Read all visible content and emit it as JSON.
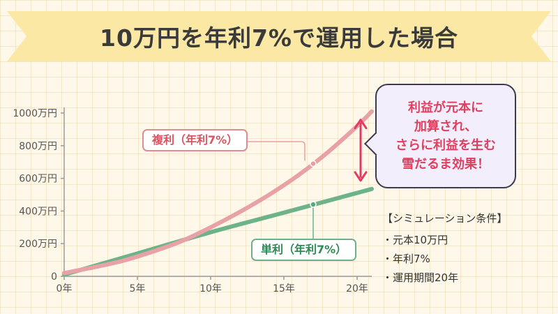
{
  "title": "10万円を年利7%で運用した場合",
  "callout": {
    "lines": [
      "利益が元本に",
      "加算され、",
      "さらに利益を生む",
      "雪だるま効果！"
    ]
  },
  "series_labels": {
    "compound": "複利（年利7%）",
    "simple": "単利（年利7%）"
  },
  "conditions": {
    "title": "【シミュレーション条件】",
    "items": [
      "・元本10万円",
      "・年利7%",
      "・運用期間20年"
    ]
  },
  "colors": {
    "compound": "#e8a1a4",
    "simple": "#6db38a",
    "arrow": "#e23a63",
    "banner": "#fbe8a4",
    "axis": "#9a9a9a"
  },
  "chart_data": {
    "type": "line",
    "x_unit": "年",
    "y_unit": "万円",
    "xlim": [
      0,
      21
    ],
    "ylim": [
      0,
      1000
    ],
    "x_ticks": [
      0,
      5,
      10,
      15,
      20
    ],
    "x_tick_labels": [
      "0年",
      "5年",
      "10年",
      "15年",
      "20年"
    ],
    "y_ticks": [
      0,
      200,
      400,
      600,
      800,
      1000
    ],
    "y_tick_labels": [
      "0",
      "200万円",
      "400万円",
      "600万円",
      "800万円",
      "1000万円"
    ],
    "grid": false,
    "series": [
      {
        "key": "compound",
        "x": [
          0,
          2,
          4,
          6,
          8,
          10,
          12,
          14,
          16,
          18,
          20,
          21
        ],
        "values": [
          20,
          55,
          95,
          150,
          215,
          300,
          395,
          500,
          620,
          760,
          920,
          1010
        ],
        "marker": {
          "x": 17,
          "y": 690
        }
      },
      {
        "key": "simple",
        "x": [
          0,
          5,
          10,
          15,
          21
        ],
        "values": [
          10,
          140,
          270,
          390,
          535
        ],
        "marker": {
          "x": 17,
          "y": 440
        }
      }
    ]
  }
}
